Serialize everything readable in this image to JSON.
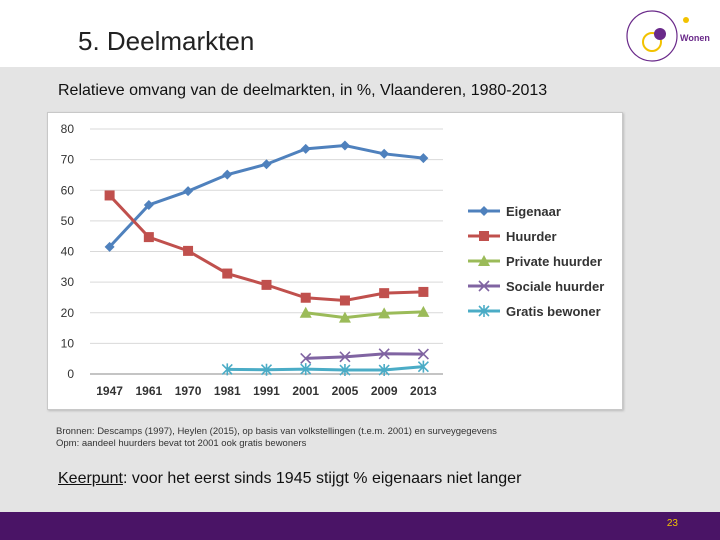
{
  "slide": {
    "title": "5. Deelmarkten",
    "subtitle": "Relatieve omvang van de deelmarkten, in %, Vlaanderen, 1980-2013",
    "source_line1": "Bronnen: Descamps (1997), Heylen (2015), op basis van volkstellingen (t.e.m. 2001) en surveygegevens",
    "source_line2": "Opm: aandeel huurders bevat tot 2001 ook gratis bewoners",
    "keerpunt_label": "Keerpunt",
    "keerpunt_rest": ": voor het eerst sinds 1945 stijgt % eigenaars niet langer",
    "page_number": "23",
    "logo_text": "Wonen"
  },
  "colors": {
    "footer": "#4a1466",
    "page_number": "#f2c200",
    "logo_accent": "#6a2a8a"
  },
  "chart_data": {
    "type": "line",
    "title": "",
    "xlabel": "",
    "ylabel": "",
    "categories": [
      "1947",
      "1961",
      "1970",
      "1981",
      "1991",
      "2001",
      "2005",
      "2009",
      "2013"
    ],
    "ylim": [
      0,
      80
    ],
    "yticks": [
      "0",
      "10",
      "20",
      "30",
      "40",
      "50",
      "60",
      "70",
      "80"
    ],
    "grid": true,
    "legend": "right",
    "series": [
      {
        "name": "Eigenaar",
        "color": "#4f81bd",
        "marker": "diamond",
        "values": [
          41.5,
          55.2,
          59.7,
          65.1,
          68.5,
          73.5,
          74.6,
          71.9,
          70.5
        ]
      },
      {
        "name": "Huurder",
        "color": "#c0504d",
        "marker": "square",
        "values": [
          58.3,
          44.7,
          40.2,
          32.8,
          29.1,
          24.9,
          24.0,
          26.4,
          26.8
        ]
      },
      {
        "name": "Private huurder",
        "color": "#9bbb59",
        "marker": "triangle",
        "values": [
          null,
          null,
          null,
          null,
          null,
          20.0,
          18.4,
          19.8,
          20.3
        ]
      },
      {
        "name": "Sociale huurder",
        "color": "#8064a2",
        "marker": "x",
        "values": [
          null,
          null,
          null,
          null,
          null,
          5.1,
          5.6,
          6.6,
          6.5
        ]
      },
      {
        "name": "Gratis bewoner",
        "color": "#4bacc6",
        "marker": "star",
        "values": [
          null,
          null,
          null,
          1.5,
          1.4,
          1.6,
          1.3,
          1.3,
          2.4
        ]
      }
    ]
  }
}
